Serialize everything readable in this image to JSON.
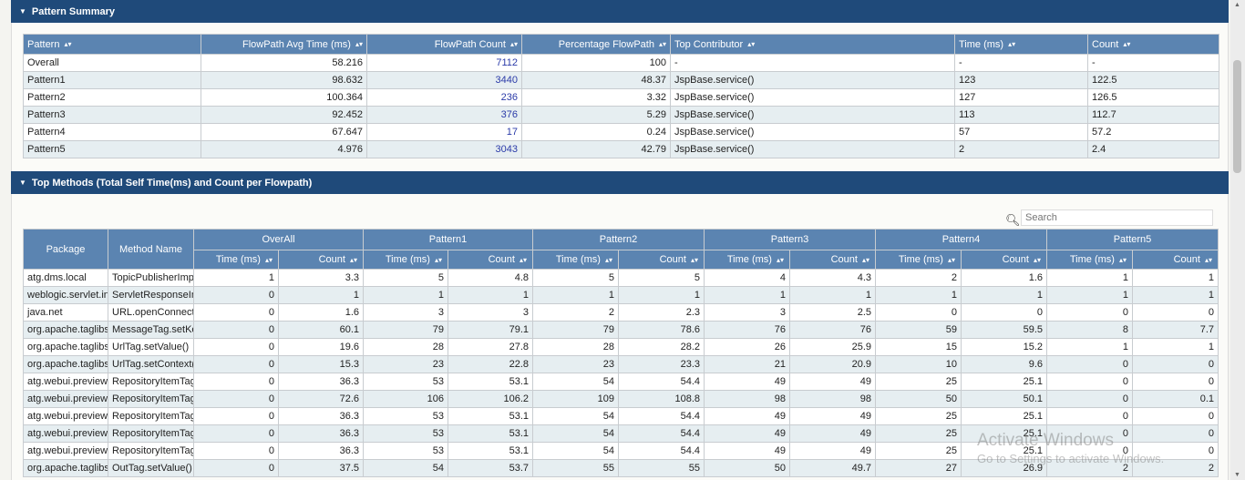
{
  "pattern_summary": {
    "title": "Pattern Summary",
    "columns": [
      "Pattern",
      "FlowPath Avg Time (ms)",
      "FlowPath Count",
      "Percentage FlowPath",
      "Top Contributor",
      "Time (ms)",
      "Count"
    ],
    "rows": [
      [
        "Overall",
        "58.216",
        "7112",
        "100",
        "-",
        "-",
        "-"
      ],
      [
        "Pattern1",
        "98.632",
        "3440",
        "48.37",
        "JspBase.service()",
        "123",
        "122.5"
      ],
      [
        "Pattern2",
        "100.364",
        "236",
        "3.32",
        "JspBase.service()",
        "127",
        "126.5"
      ],
      [
        "Pattern3",
        "92.452",
        "376",
        "5.29",
        "JspBase.service()",
        "113",
        "112.7"
      ],
      [
        "Pattern4",
        "67.647",
        "17",
        "0.24",
        "JspBase.service()",
        "57",
        "57.2"
      ],
      [
        "Pattern5",
        "4.976",
        "3043",
        "42.79",
        "JspBase.service()",
        "2",
        "2.4"
      ]
    ]
  },
  "top_methods": {
    "title": "Top Methods (Total Self Time(ms) and Count per Flowpath)",
    "search_placeholder": "Search",
    "col_package": "Package",
    "col_method": "Method Name",
    "groups": [
      "OverAll",
      "Pattern1",
      "Pattern2",
      "Pattern3",
      "Pattern4",
      "Pattern5"
    ],
    "sub_time": "Time (ms)",
    "sub_count": "Count",
    "rows": [
      [
        "atg.dms.local",
        "TopicPublisherImpl",
        "1",
        "3.3",
        "5",
        "4.8",
        "5",
        "5",
        "4",
        "4.3",
        "2",
        "1.6",
        "1",
        "1"
      ],
      [
        "weblogic.servlet.internal",
        "ServletResponseImpl",
        "0",
        "1",
        "1",
        "1",
        "1",
        "1",
        "1",
        "1",
        "1",
        "1",
        "1",
        "1"
      ],
      [
        "java.net",
        "URL.openConnection()",
        "0",
        "1.6",
        "3",
        "3",
        "2",
        "2.3",
        "3",
        "2.5",
        "0",
        "0",
        "0",
        "0"
      ],
      [
        "org.apache.taglibs",
        "MessageTag.setKey()",
        "0",
        "60.1",
        "79",
        "79.1",
        "79",
        "78.6",
        "76",
        "76",
        "59",
        "59.5",
        "8",
        "7.7"
      ],
      [
        "org.apache.taglibs",
        "UrlTag.setValue()",
        "0",
        "19.6",
        "28",
        "27.8",
        "28",
        "28.2",
        "26",
        "25.9",
        "15",
        "15.2",
        "1",
        "1"
      ],
      [
        "org.apache.taglibs",
        "UrlTag.setContext()",
        "0",
        "15.3",
        "23",
        "22.8",
        "23",
        "23.3",
        "21",
        "20.9",
        "10",
        "9.6",
        "0",
        "0"
      ],
      [
        "atg.webui.preview",
        "RepositoryItemTag",
        "0",
        "36.3",
        "53",
        "53.1",
        "54",
        "54.4",
        "49",
        "49",
        "25",
        "25.1",
        "0",
        "0"
      ],
      [
        "atg.webui.preview",
        "RepositoryItemTag",
        "0",
        "72.6",
        "106",
        "106.2",
        "109",
        "108.8",
        "98",
        "98",
        "50",
        "50.1",
        "0",
        "0.1"
      ],
      [
        "atg.webui.preview",
        "RepositoryItemTag",
        "0",
        "36.3",
        "53",
        "53.1",
        "54",
        "54.4",
        "49",
        "49",
        "25",
        "25.1",
        "0",
        "0"
      ],
      [
        "atg.webui.preview",
        "RepositoryItemTag",
        "0",
        "36.3",
        "53",
        "53.1",
        "54",
        "54.4",
        "49",
        "49",
        "25",
        "25.1",
        "0",
        "0"
      ],
      [
        "atg.webui.preview",
        "RepositoryItemTag",
        "0",
        "36.3",
        "53",
        "53.1",
        "54",
        "54.4",
        "49",
        "49",
        "25",
        "25.1",
        "0",
        "0"
      ],
      [
        "org.apache.taglibs",
        "OutTag.setValue()",
        "0",
        "37.5",
        "54",
        "53.7",
        "55",
        "55",
        "50",
        "49.7",
        "27",
        "26.9",
        "2",
        "2"
      ]
    ]
  },
  "watermark": {
    "title": "Activate Windows",
    "subtitle": "Go to Settings to activate Windows."
  },
  "icons": {
    "collapse": "caret-down-icon",
    "sort": "sort-icon",
    "search": "search-icon"
  },
  "colors": {
    "panel_header": "#1f4a7a",
    "table_header": "#5b84b1",
    "row_alt": "#e6eef1",
    "link": "#2a3aa8"
  }
}
